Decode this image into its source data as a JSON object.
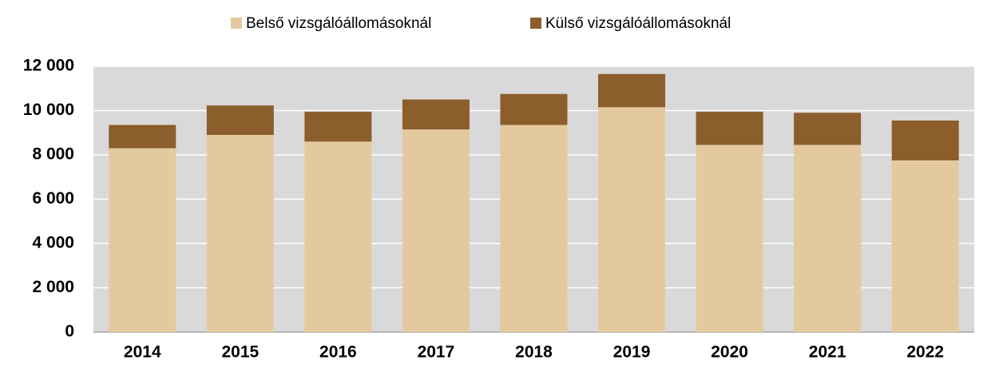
{
  "chart_data": {
    "type": "stacked_bar",
    "categories": [
      "2014",
      "2015",
      "2016",
      "2017",
      "2018",
      "2019",
      "2020",
      "2021",
      "2022"
    ],
    "series": [
      {
        "name": "Belső vizsgálóállomásoknál",
        "color": "#e5c99e",
        "values": [
          8300,
          8900,
          8600,
          9150,
          9350,
          10150,
          8450,
          8450,
          7750
        ]
      },
      {
        "name": "Külső vizsgálóállomásoknál",
        "color": "#8b5e2c",
        "values": [
          1050,
          1330,
          1350,
          1350,
          1400,
          1500,
          1500,
          1450,
          1800
        ]
      }
    ],
    "ylim": [
      0,
      12000
    ],
    "yticks": [
      0,
      {
        "value": 2000,
        "label": "2 000"
      },
      {
        "value": 4000,
        "label": "4 000"
      },
      {
        "value": 6000,
        "label": "6 000"
      },
      {
        "value": 8000,
        "label": "8 000"
      },
      {
        "value": 10000,
        "label": "10 000"
      },
      {
        "value": 12000,
        "label": "12 000"
      }
    ],
    "grid": true,
    "legend": "top"
  }
}
